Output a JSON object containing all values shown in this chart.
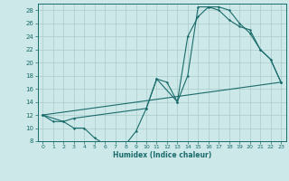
{
  "title": "",
  "xlabel": "Humidex (Indice chaleur)",
  "bg_color": "#cde8e8",
  "grid_color": "#aacccc",
  "line_color": "#1a6b6b",
  "xlim": [
    -0.5,
    23.5
  ],
  "ylim": [
    8,
    29
  ],
  "xtick_labels": [
    "0",
    "1",
    "2",
    "3",
    "4",
    "5",
    "6",
    "7",
    "8",
    "9",
    "10",
    "11",
    "12",
    "13",
    "14",
    "15",
    "16",
    "17",
    "18",
    "19",
    "20",
    "21",
    "22",
    "23"
  ],
  "xtick_vals": [
    0,
    1,
    2,
    3,
    4,
    5,
    6,
    7,
    8,
    9,
    10,
    11,
    12,
    13,
    14,
    15,
    16,
    17,
    18,
    19,
    20,
    21,
    22,
    23
  ],
  "ytick_vals": [
    8,
    10,
    12,
    14,
    16,
    18,
    20,
    22,
    24,
    26,
    28
  ],
  "curve1_x": [
    0,
    1,
    2,
    3,
    4,
    5,
    6,
    7,
    8,
    9,
    10,
    11,
    12,
    13,
    14,
    15,
    16,
    17,
    18,
    19,
    20,
    21,
    22,
    23
  ],
  "curve1_y": [
    12,
    11,
    11,
    10,
    10,
    8.5,
    7.5,
    7.5,
    7.5,
    9.5,
    13,
    17.5,
    17,
    14,
    24,
    27,
    28.5,
    28.5,
    28,
    26,
    24.5,
    22,
    20.5,
    17
  ],
  "curve2_x": [
    0,
    2,
    3,
    10,
    11,
    13,
    14,
    15,
    16,
    17,
    18,
    19,
    20,
    21,
    22,
    23
  ],
  "curve2_y": [
    12,
    11,
    11.5,
    13,
    17.5,
    14,
    18,
    28.5,
    28.5,
    28,
    26.5,
    25.5,
    25,
    22,
    20.5,
    17
  ],
  "curve3_x": [
    0,
    23
  ],
  "curve3_y": [
    12,
    17
  ]
}
